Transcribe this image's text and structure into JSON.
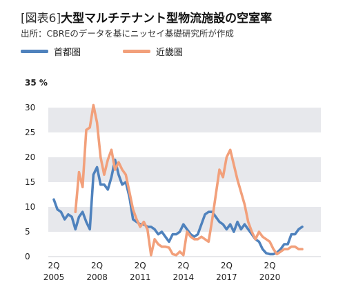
{
  "header": {
    "title_bracket": "[図表6]",
    "title_main": "大型マルチテナント型物流施設の空室率",
    "source": "出所：CBREのデータを基にニッセイ基礎研究所が作成"
  },
  "colors": {
    "tokyo": "#4f82bd",
    "kinki": "#f2a07b",
    "band": "#e7e8ec"
  },
  "chart_data": {
    "type": "line",
    "ylim": [
      0,
      35
    ],
    "yticks": [
      "0",
      "5",
      "10",
      "15",
      "20",
      "25",
      "30",
      "35 %"
    ],
    "x_range": [
      2005.25,
      2022.5
    ],
    "xticks": [
      {
        "value": 2005.25,
        "label_top": "2Q",
        "label_bottom": "2005"
      },
      {
        "value": 2008.25,
        "label_top": "2Q",
        "label_bottom": "2008"
      },
      {
        "value": 2011.25,
        "label_top": "2Q",
        "label_bottom": "2011"
      },
      {
        "value": 2014.25,
        "label_top": "2Q",
        "label_bottom": "2014"
      },
      {
        "value": 2017.25,
        "label_top": "2Q",
        "label_bottom": "2017"
      },
      {
        "value": 2020.25,
        "label_top": "2Q",
        "label_bottom": "2020"
      }
    ],
    "legend_position": "top-left",
    "series": [
      {
        "name": "首都圏",
        "color_key": "tokyo",
        "points": [
          [
            2005.25,
            11.5
          ],
          [
            2005.5,
            9.5
          ],
          [
            2005.75,
            9.0
          ],
          [
            2006.0,
            7.5
          ],
          [
            2006.25,
            8.5
          ],
          [
            2006.5,
            8.0
          ],
          [
            2006.75,
            5.5
          ],
          [
            2007.0,
            8.0
          ],
          [
            2007.25,
            9.0
          ],
          [
            2007.5,
            7.0
          ],
          [
            2007.75,
            5.5
          ],
          [
            2008.0,
            16.5
          ],
          [
            2008.25,
            18.0
          ],
          [
            2008.5,
            14.5
          ],
          [
            2008.75,
            14.5
          ],
          [
            2009.0,
            13.5
          ],
          [
            2009.25,
            16.0
          ],
          [
            2009.5,
            19.5
          ],
          [
            2009.75,
            16.5
          ],
          [
            2010.0,
            14.5
          ],
          [
            2010.25,
            15.0
          ],
          [
            2010.5,
            12.0
          ],
          [
            2010.75,
            7.5
          ],
          [
            2011.0,
            7.0
          ],
          [
            2011.25,
            6.5
          ],
          [
            2011.5,
            6.5
          ],
          [
            2011.75,
            6.0
          ],
          [
            2012.0,
            6.0
          ],
          [
            2012.25,
            5.5
          ],
          [
            2012.5,
            4.5
          ],
          [
            2012.75,
            5.0
          ],
          [
            2013.0,
            4.0
          ],
          [
            2013.25,
            3.0
          ],
          [
            2013.5,
            4.5
          ],
          [
            2013.75,
            4.5
          ],
          [
            2014.0,
            5.0
          ],
          [
            2014.25,
            6.5
          ],
          [
            2014.5,
            5.5
          ],
          [
            2014.75,
            4.5
          ],
          [
            2015.0,
            4.0
          ],
          [
            2015.25,
            4.5
          ],
          [
            2015.5,
            6.5
          ],
          [
            2015.75,
            8.5
          ],
          [
            2016.0,
            9.0
          ],
          [
            2016.25,
            9.0
          ],
          [
            2016.5,
            8.0
          ],
          [
            2016.75,
            7.0
          ],
          [
            2017.0,
            6.5
          ],
          [
            2017.25,
            5.5
          ],
          [
            2017.5,
            6.5
          ],
          [
            2017.75,
            5.0
          ],
          [
            2018.0,
            7.0
          ],
          [
            2018.25,
            5.5
          ],
          [
            2018.5,
            6.5
          ],
          [
            2018.75,
            5.5
          ],
          [
            2019.0,
            4.5
          ],
          [
            2019.25,
            3.5
          ],
          [
            2019.5,
            3.0
          ],
          [
            2019.75,
            1.5
          ],
          [
            2020.0,
            0.7
          ],
          [
            2020.25,
            0.5
          ],
          [
            2020.5,
            0.5
          ],
          [
            2020.75,
            0.8
          ],
          [
            2021.0,
            1.5
          ],
          [
            2021.25,
            2.5
          ],
          [
            2021.5,
            2.5
          ],
          [
            2021.75,
            4.5
          ],
          [
            2022.0,
            4.5
          ],
          [
            2022.25,
            5.5
          ],
          [
            2022.5,
            6.0
          ]
        ]
      },
      {
        "name": "近畿圏",
        "color_key": "kinki",
        "points": [
          [
            2006.75,
            9.0
          ],
          [
            2007.0,
            17.0
          ],
          [
            2007.25,
            14.0
          ],
          [
            2007.5,
            25.5
          ],
          [
            2007.75,
            26.0
          ],
          [
            2008.0,
            30.5
          ],
          [
            2008.25,
            27.0
          ],
          [
            2008.5,
            20.0
          ],
          [
            2008.75,
            16.5
          ],
          [
            2009.0,
            19.5
          ],
          [
            2009.25,
            21.5
          ],
          [
            2009.5,
            17.5
          ],
          [
            2009.75,
            19.0
          ],
          [
            2010.0,
            17.5
          ],
          [
            2010.25,
            16.5
          ],
          [
            2010.5,
            13.0
          ],
          [
            2010.75,
            9.5
          ],
          [
            2011.0,
            7.5
          ],
          [
            2011.25,
            6.0
          ],
          [
            2011.5,
            7.0
          ],
          [
            2011.75,
            5.5
          ],
          [
            2012.0,
            0.3
          ],
          [
            2012.25,
            3.5
          ],
          [
            2012.5,
            2.5
          ],
          [
            2012.75,
            2.0
          ],
          [
            2013.0,
            2.0
          ],
          [
            2013.25,
            1.8
          ],
          [
            2013.5,
            0.5
          ],
          [
            2013.75,
            0.3
          ],
          [
            2014.0,
            1.0
          ],
          [
            2014.25,
            0.3
          ],
          [
            2014.5,
            5.0
          ],
          [
            2014.75,
            4.0
          ],
          [
            2015.0,
            3.5
          ],
          [
            2015.25,
            3.5
          ],
          [
            2015.5,
            4.0
          ],
          [
            2015.75,
            3.5
          ],
          [
            2016.0,
            3.0
          ],
          [
            2016.25,
            7.5
          ],
          [
            2016.5,
            12.5
          ],
          [
            2016.75,
            17.5
          ],
          [
            2017.0,
            16.0
          ],
          [
            2017.25,
            20.0
          ],
          [
            2017.5,
            21.5
          ],
          [
            2017.75,
            18.5
          ],
          [
            2018.0,
            15.5
          ],
          [
            2018.25,
            13.0
          ],
          [
            2018.5,
            10.5
          ],
          [
            2018.75,
            7.0
          ],
          [
            2019.0,
            5.0
          ],
          [
            2019.25,
            3.5
          ],
          [
            2019.5,
            5.0
          ],
          [
            2019.75,
            4.0
          ],
          [
            2020.0,
            3.5
          ],
          [
            2020.25,
            3.0
          ],
          [
            2020.5,
            1.5
          ],
          [
            2020.75,
            0.5
          ],
          [
            2021.0,
            1.0
          ],
          [
            2021.25,
            1.5
          ],
          [
            2021.5,
            1.5
          ],
          [
            2021.75,
            2.0
          ],
          [
            2022.0,
            2.0
          ],
          [
            2022.25,
            1.5
          ],
          [
            2022.5,
            1.5
          ]
        ]
      }
    ]
  }
}
